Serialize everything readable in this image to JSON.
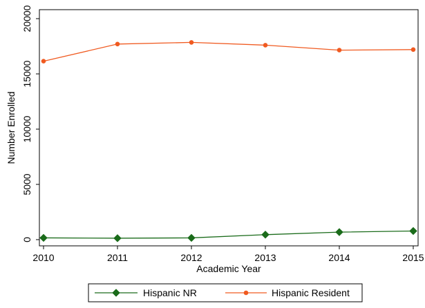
{
  "chart_data": {
    "type": "line",
    "title": "",
    "xlabel": "Academic Year",
    "ylabel": "Number Enrolled",
    "x": [
      2010,
      2011,
      2012,
      2013,
      2014,
      2015
    ],
    "xlim": [
      2010,
      2015
    ],
    "ylim": [
      0,
      20000
    ],
    "xticks": [
      "2010",
      "2011",
      "2012",
      "2013",
      "2014",
      "2015"
    ],
    "yticks": [
      "0",
      "5000",
      "10000",
      "15000",
      "20000"
    ],
    "grid": false,
    "legend_position": "bottom",
    "series": [
      {
        "name": "Hispanic NR",
        "color": "#1a6b1a",
        "marker": "diamond",
        "values": [
          160,
          130,
          160,
          450,
          680,
          780
        ]
      },
      {
        "name": "Hispanic Resident",
        "color": "#f05a20",
        "marker": "circle",
        "values": [
          16150,
          17700,
          17850,
          17600,
          17150,
          17200
        ]
      }
    ]
  }
}
